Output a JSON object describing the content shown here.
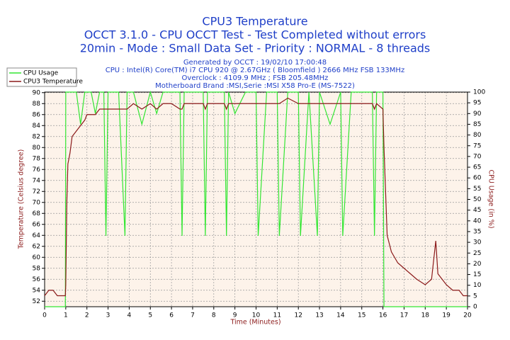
{
  "chart_data": {
    "type": "line",
    "title": "CPU3 Temperature",
    "subtitles": [
      "OCCT 3.1.0 - CPU OCCT Test - Test Completed without errors",
      "20min - Mode : Small Data Set - Priority : NORMAL - 8 threads"
    ],
    "info": [
      "Generated by OCCT : 19/02/10 17:00:48",
      "CPU : Intel(R) Core(TM) i7 CPU 920 @ 2.67GHz ( Bloomfield ) 2666 MHz FSB 133MHz",
      "Overclock : 4109.9 MHz ; FSB 205.48MHz",
      "Motherboard Brand :MSI,Serie :MSI X58 Pro-E (MS-7522)"
    ],
    "xlabel": "Time (Minutes)",
    "ylabel": "Temperature (Celsius degree)",
    "y2label": "CPU Usage (in %)",
    "x": [
      0,
      0.2,
      0.4,
      0.6,
      0.8,
      0.98,
      1.0,
      1.05,
      1.1,
      1.2,
      1.3,
      1.5,
      1.7,
      1.9,
      2.0,
      2.2,
      2.4,
      2.6,
      2.8,
      2.9,
      3.0,
      3.2,
      3.5,
      3.8,
      3.9,
      4.2,
      4.6,
      5.0,
      5.3,
      5.6,
      6.0,
      6.4,
      6.5,
      6.6,
      7.0,
      7.5,
      7.6,
      7.7,
      8.0,
      8.5,
      8.6,
      8.7,
      9.0,
      9.5,
      10.0,
      10.1,
      10.5,
      11.0,
      11.1,
      11.5,
      12.0,
      12.1,
      12.5,
      12.9,
      13.0,
      13.5,
      14.0,
      14.1,
      14.5,
      15.0,
      15.5,
      15.6,
      15.7,
      16.0,
      16.05,
      16.2,
      16.4,
      16.7,
      17.0,
      17.3,
      17.6,
      18.0,
      18.3,
      18.5,
      18.6,
      18.8,
      19.0,
      19.3,
      19.6,
      19.8,
      20.0
    ],
    "series": [
      {
        "name": "CPU Usage",
        "color": "#33e633",
        "axis": "y2",
        "values": [
          0,
          0,
          0,
          0,
          0,
          0,
          100,
          100,
          100,
          100,
          100,
          100,
          85,
          100,
          100,
          100,
          90,
          100,
          100,
          33,
          100,
          100,
          100,
          33,
          100,
          100,
          85,
          100,
          90,
          100,
          100,
          100,
          33,
          100,
          100,
          100,
          33,
          100,
          100,
          100,
          33,
          100,
          90,
          100,
          100,
          33,
          100,
          100,
          33,
          100,
          100,
          33,
          100,
          33,
          100,
          85,
          100,
          33,
          100,
          100,
          100,
          33,
          100,
          100,
          0,
          0,
          0,
          0,
          0,
          0,
          0,
          0,
          0,
          0,
          0,
          0,
          0,
          0,
          0,
          0,
          0
        ]
      },
      {
        "name": "CPU3 Temperature",
        "color": "#8b1a1a",
        "values": [
          53,
          54,
          54,
          53,
          53,
          53,
          55,
          70,
          77,
          79,
          82,
          83,
          84,
          85,
          86,
          86,
          86,
          87,
          87,
          87,
          87,
          87,
          87,
          87,
          87,
          88,
          87,
          88,
          87,
          88,
          88,
          87,
          87,
          88,
          88,
          88,
          87,
          88,
          88,
          88,
          87,
          88,
          88,
          88,
          88,
          88,
          88,
          88,
          88,
          89,
          88,
          88,
          88,
          88,
          88,
          88,
          88,
          88,
          88,
          88,
          88,
          87,
          88,
          87,
          80,
          64,
          61,
          59,
          58,
          57,
          56,
          55,
          56,
          63,
          57,
          56,
          55,
          54,
          54,
          53,
          53
        ]
      }
    ],
    "xlim": [
      0,
      20
    ],
    "ylim": [
      51,
      90.1
    ],
    "y2lim": [
      0,
      100
    ],
    "xticks": [
      0,
      1,
      2,
      3,
      4,
      5,
      6,
      7,
      8,
      9,
      10,
      11,
      12,
      13,
      14,
      15,
      16,
      17,
      18,
      19,
      20
    ],
    "yticks": [
      52,
      54,
      56,
      58,
      60,
      62,
      64,
      66,
      68,
      70,
      72,
      74,
      76,
      78,
      80,
      82,
      84,
      86,
      88,
      90
    ],
    "y2ticks": [
      0,
      5,
      10,
      15,
      20,
      25,
      30,
      35,
      40,
      45,
      50,
      55,
      60,
      65,
      70,
      75,
      80,
      85,
      90,
      95,
      100
    ],
    "grid": true,
    "legend": "upper left"
  }
}
